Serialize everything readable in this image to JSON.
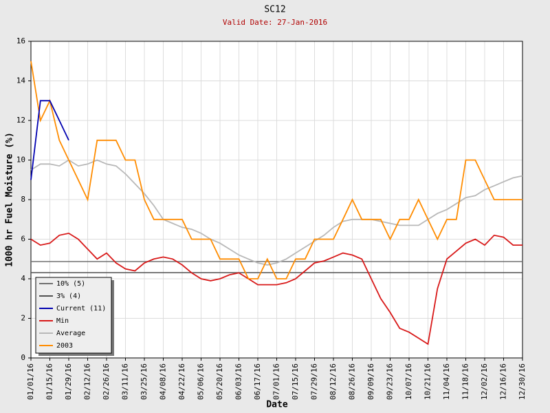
{
  "chart_data": {
    "type": "line",
    "title": "SC12",
    "subtitle": "Valid Date: 27-Jan-2016",
    "x_label": "Date",
    "y_label": "1000 hr Fuel Moisture (%)",
    "x": [
      "01/01/16",
      "01/08/16",
      "01/15/16",
      "01/22/16",
      "01/29/16",
      "02/05/16",
      "02/12/16",
      "02/19/16",
      "02/26/16",
      "03/04/16",
      "03/11/16",
      "03/18/16",
      "03/25/16",
      "04/01/16",
      "04/08/16",
      "04/15/16",
      "04/22/16",
      "04/29/16",
      "05/06/16",
      "05/13/16",
      "05/20/16",
      "05/27/16",
      "06/03/16",
      "06/10/16",
      "06/17/16",
      "06/24/16",
      "07/01/16",
      "07/08/16",
      "07/15/16",
      "07/22/16",
      "07/29/16",
      "08/05/16",
      "08/12/16",
      "08/19/16",
      "08/26/16",
      "09/02/16",
      "09/09/16",
      "09/16/16",
      "09/23/16",
      "09/30/16",
      "10/07/16",
      "10/14/16",
      "10/21/16",
      "10/28/16",
      "11/04/16",
      "11/11/16",
      "11/18/16",
      "11/25/16",
      "12/02/16",
      "12/09/16",
      "12/16/16",
      "12/23/16",
      "12/30/16"
    ],
    "xlim": [
      "01/01/16",
      "12/30/16"
    ],
    "xticks": [
      "01/01/16",
      "01/15/16",
      "01/29/16",
      "02/12/16",
      "02/26/16",
      "03/11/16",
      "03/25/16",
      "04/08/16",
      "04/22/16",
      "05/06/16",
      "05/20/16",
      "06/03/16",
      "06/17/16",
      "07/01/16",
      "07/15/16",
      "07/29/16",
      "08/12/16",
      "08/26/16",
      "09/09/16",
      "09/23/16",
      "10/07/16",
      "10/21/16",
      "11/04/16",
      "11/18/16",
      "12/02/16",
      "12/16/16",
      "12/30/16"
    ],
    "ylim": [
      0,
      16
    ],
    "yticks": [
      0,
      2,
      4,
      6,
      8,
      10,
      12,
      14,
      16
    ],
    "grid": true,
    "reference_lines": [
      {
        "name": "10% (5)",
        "color": "#707070",
        "value": 4.87
      },
      {
        "name": "3% (4)",
        "color": "#505050",
        "value": 4.31
      }
    ],
    "series": [
      {
        "name": "Current (11)",
        "color": "#0000b0",
        "values": [
          9,
          13,
          13,
          12,
          11,
          null,
          null,
          null,
          null,
          null,
          null,
          null,
          null,
          null,
          null,
          null,
          null,
          null,
          null,
          null,
          null,
          null,
          null,
          null,
          null,
          null,
          null,
          null,
          null,
          null,
          null,
          null,
          null,
          null,
          null,
          null,
          null,
          null,
          null,
          null,
          null,
          null,
          null,
          null,
          null,
          null,
          null,
          null,
          null,
          null,
          null,
          null,
          null
        ]
      },
      {
        "name": "Min",
        "color": "#d81818",
        "values": [
          6.0,
          5.7,
          5.8,
          6.2,
          6.3,
          6.0,
          5.5,
          5.0,
          5.3,
          4.8,
          4.5,
          4.4,
          4.8,
          5.0,
          5.1,
          5.0,
          4.7,
          4.3,
          4.0,
          3.9,
          4.0,
          4.2,
          4.3,
          4.0,
          3.7,
          3.7,
          3.7,
          3.8,
          4.0,
          4.4,
          4.8,
          4.9,
          5.1,
          5.3,
          5.2,
          5.0,
          4.0,
          3.0,
          2.3,
          1.5,
          1.3,
          1.0,
          0.7,
          3.5,
          5.0,
          5.4,
          5.8,
          6.0,
          5.7,
          6.2,
          6.1,
          5.7,
          5.7
        ]
      },
      {
        "name": "Average",
        "color": "#b8b8b8",
        "values": [
          9.5,
          9.8,
          9.8,
          9.7,
          10,
          9.7,
          9.8,
          10,
          9.8,
          9.7,
          9.3,
          8.8,
          8.3,
          7.7,
          7.0,
          6.8,
          6.6,
          6.5,
          6.3,
          6.0,
          5.8,
          5.5,
          5.2,
          5.0,
          4.8,
          4.7,
          4.8,
          5.0,
          5.3,
          5.6,
          5.9,
          6.2,
          6.6,
          6.9,
          7.0,
          7.0,
          7.0,
          6.9,
          6.8,
          6.7,
          6.7,
          6.7,
          7.0,
          7.3,
          7.5,
          7.8,
          8.1,
          8.2,
          8.5,
          8.7,
          8.9,
          9.1,
          9.2
        ]
      },
      {
        "name": "2003",
        "color": "#ff8c00",
        "values": [
          15,
          12,
          13,
          11,
          10,
          9,
          8,
          11,
          11,
          11,
          10,
          10,
          8,
          7,
          7,
          7,
          7,
          6,
          6,
          6,
          5,
          5,
          5,
          4,
          4,
          5,
          4,
          4,
          5,
          5,
          6,
          6,
          6,
          7,
          8,
          7,
          7,
          7,
          6,
          7,
          7,
          8,
          7,
          6,
          7,
          7,
          10,
          10,
          9,
          8,
          8,
          8,
          8
        ]
      }
    ]
  }
}
